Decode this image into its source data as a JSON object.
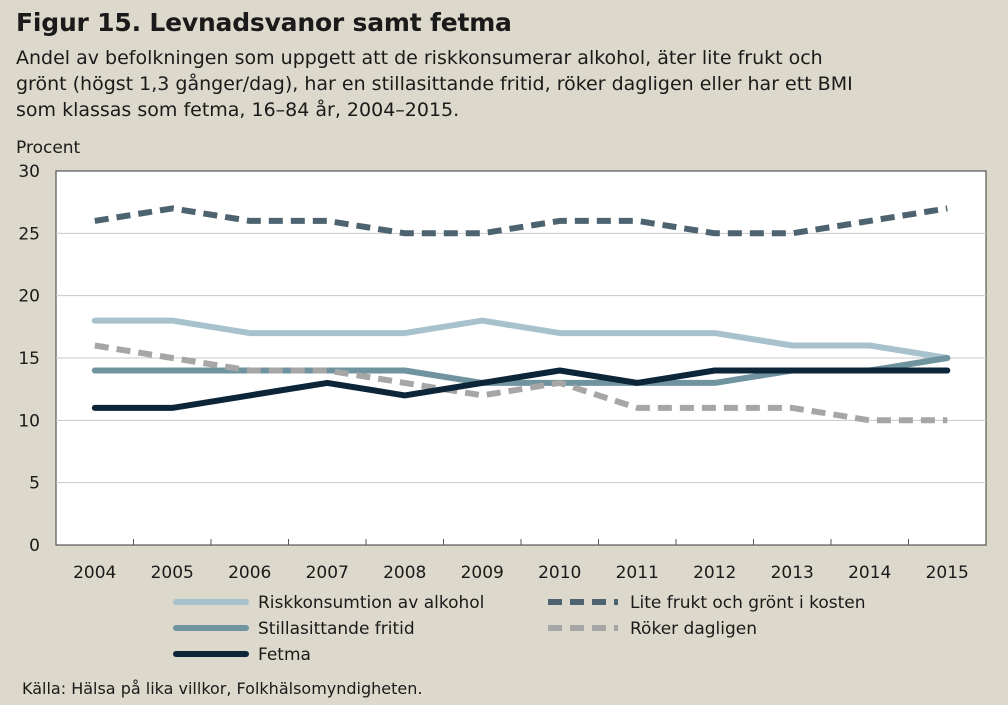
{
  "header": {
    "title": "Figur 15. Levnadsvanor samt fetma",
    "subtitle_lines": [
      "Andel av befolkningen som uppgett att de riskkonsumerar alkohol, äter lite frukt och",
      "grönt (högst 1,3 gånger/dag), har en stillasittande fritid, röker dagligen eller har  ett BMI",
      "som klassas som fetma, 16–84 år, 2004–2015."
    ]
  },
  "source": "Källa: Hälsa på lika villkor, Folkhälsomyndigheten.",
  "chart_data": {
    "type": "line",
    "title": "Figur 15. Levnadsvanor samt fetma",
    "ylabel": "Procent",
    "xlabel": "",
    "ylim": [
      0,
      30
    ],
    "yticks": [
      0,
      5,
      10,
      15,
      20,
      25,
      30
    ],
    "grid": true,
    "legend_position": "bottom",
    "categories": [
      "2004",
      "2005",
      "2006",
      "2007",
      "2008",
      "2009",
      "2010",
      "2011",
      "2012",
      "2013",
      "2014",
      "2015"
    ],
    "series": [
      {
        "name": "Riskkonsumtion av alkohol",
        "color": "#a8c2cd",
        "dashed": false,
        "values": [
          18,
          18,
          17,
          17,
          17,
          18,
          17,
          17,
          17,
          16,
          16,
          15
        ]
      },
      {
        "name": "Lite frukt och grönt i kosten",
        "color": "#4d6470",
        "dashed": true,
        "values": [
          26,
          27,
          26,
          26,
          25,
          25,
          26,
          26,
          25,
          25,
          26,
          27
        ]
      },
      {
        "name": "Stillasittande fritid",
        "color": "#6f94a0",
        "dashed": false,
        "values": [
          14,
          14,
          14,
          14,
          14,
          13,
          13,
          13,
          13,
          14,
          14,
          15
        ]
      },
      {
        "name": "Röker dagligen",
        "color": "#a6a6a6",
        "dashed": true,
        "values": [
          16,
          15,
          14,
          14,
          13,
          12,
          13,
          11,
          11,
          11,
          10,
          10
        ]
      },
      {
        "name": "Fetma",
        "color": "#0d2538",
        "dashed": false,
        "values": [
          11,
          11,
          12,
          13,
          12,
          13,
          14,
          13,
          14,
          14,
          14,
          14
        ]
      }
    ]
  }
}
